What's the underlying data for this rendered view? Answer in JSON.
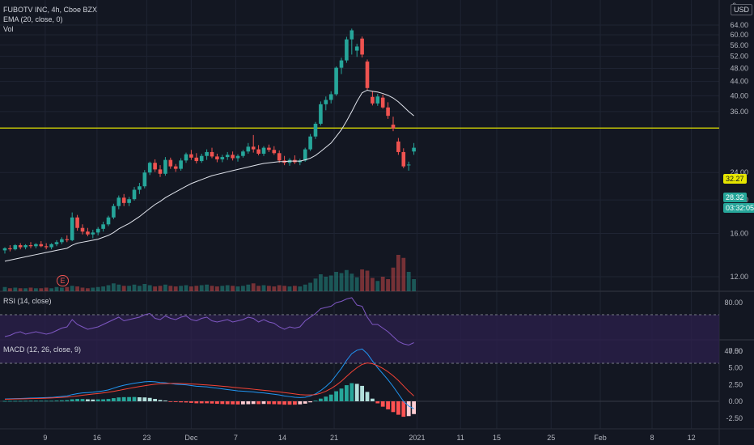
{
  "header": {
    "symbol_line": "FUBOTV INC, 4h, Cboe BZX",
    "ema_label": "EMA (20, close, 0)",
    "vol_label": "Vol",
    "currency": "USD",
    "axis_top_fragment": "6"
  },
  "panes": {
    "rsi_label": "RSI (14, close)",
    "macd_label": "MACD (12, 26, close, 9)"
  },
  "colors": {
    "background": "#131722",
    "up": "#26a69a",
    "down": "#ef5350",
    "ema": "#e0e3eb",
    "hline": "#e6e600",
    "rsi": "#7e57c2",
    "rsi_band": "#2a1f4a",
    "macd": "#2196f3",
    "signal": "#f44336"
  },
  "badges": {
    "hline_price": "32.27",
    "last_price": "28.32",
    "countdown": "03:32:05",
    "earnings_marker": "E"
  },
  "chart_data": {
    "type": "candlestick",
    "title": "FUBOTV INC, 4h, Cboe BZX",
    "price_axis": {
      "ticks": [
        "64.00",
        "60.00",
        "56.00",
        "52.00",
        "48.00",
        "44.00",
        "40.00",
        "36.00",
        "32.27",
        "28.32",
        "24.00",
        "20.00",
        "16.00",
        "12.00"
      ],
      "ylim": [
        10.5,
        66
      ],
      "scale": "log"
    },
    "rsi_axis": {
      "ticks": [
        "80.00",
        "40.00"
      ],
      "band": [
        30,
        70
      ]
    },
    "macd_axis": {
      "ticks": [
        "7.50",
        "5.00",
        "2.50",
        "0.00",
        "-2.50"
      ],
      "ylim": [
        -3.5,
        9
      ]
    },
    "x_ticks": [
      "9",
      "16",
      "23",
      "Dec",
      "7",
      "14",
      "21",
      "2021",
      "11",
      "15",
      "25",
      "Feb",
      "8",
      "12"
    ],
    "horizontal_line": 32.27,
    "candles": [
      [
        14.3,
        14.6,
        14.0,
        14.5
      ],
      [
        14.5,
        14.8,
        14.2,
        14.4
      ],
      [
        14.4,
        14.9,
        14.3,
        14.8
      ],
      [
        14.8,
        15.0,
        14.4,
        14.6
      ],
      [
        14.6,
        14.9,
        14.4,
        14.8
      ],
      [
        14.8,
        15.1,
        14.5,
        14.7
      ],
      [
        14.7,
        15.0,
        14.5,
        14.9
      ],
      [
        14.9,
        15.2,
        14.6,
        14.7
      ],
      [
        14.7,
        15.0,
        14.4,
        14.6
      ],
      [
        14.6,
        15.0,
        14.4,
        14.9
      ],
      [
        14.9,
        15.3,
        14.7,
        15.1
      ],
      [
        15.1,
        15.6,
        14.9,
        15.4
      ],
      [
        15.4,
        15.8,
        15.1,
        15.3
      ],
      [
        15.3,
        18.4,
        15.2,
        17.8
      ],
      [
        17.8,
        18.1,
        16.3,
        16.6
      ],
      [
        16.6,
        17.0,
        15.9,
        16.2
      ],
      [
        16.2,
        16.6,
        15.7,
        15.9
      ],
      [
        15.9,
        16.4,
        15.5,
        16.1
      ],
      [
        16.1,
        16.7,
        15.8,
        16.5
      ],
      [
        16.5,
        17.3,
        16.2,
        17.0
      ],
      [
        17.0,
        18.0,
        16.8,
        17.8
      ],
      [
        17.8,
        19.5,
        17.6,
        19.2
      ],
      [
        19.2,
        20.6,
        18.8,
        20.3
      ],
      [
        20.3,
        20.8,
        19.2,
        19.6
      ],
      [
        19.6,
        20.4,
        19.2,
        20.1
      ],
      [
        20.1,
        21.8,
        19.9,
        21.4
      ],
      [
        21.4,
        22.4,
        20.8,
        21.9
      ],
      [
        21.9,
        24.4,
        21.6,
        24.0
      ],
      [
        24.0,
        25.8,
        23.6,
        25.6
      ],
      [
        25.6,
        26.2,
        24.1,
        24.5
      ],
      [
        24.5,
        25.2,
        23.3,
        23.8
      ],
      [
        23.8,
        26.6,
        23.5,
        26.1
      ],
      [
        26.1,
        26.5,
        24.6,
        25.0
      ],
      [
        25.0,
        25.4,
        24.1,
        24.6
      ],
      [
        24.6,
        26.4,
        24.3,
        26.0
      ],
      [
        26.0,
        27.4,
        25.6,
        27.1
      ],
      [
        27.1,
        27.9,
        26.1,
        26.5
      ],
      [
        26.5,
        27.3,
        25.5,
        25.9
      ],
      [
        25.9,
        27.2,
        25.6,
        26.8
      ],
      [
        26.8,
        28.0,
        26.1,
        27.5
      ],
      [
        27.5,
        28.3,
        26.4,
        26.7
      ],
      [
        26.7,
        27.2,
        25.7,
        26.2
      ],
      [
        26.2,
        27.0,
        25.7,
        26.6
      ],
      [
        26.6,
        27.5,
        26.1,
        27.0
      ],
      [
        27.0,
        27.6,
        26.0,
        26.4
      ],
      [
        26.4,
        27.1,
        25.8,
        26.8
      ],
      [
        26.8,
        27.9,
        26.5,
        27.6
      ],
      [
        27.6,
        29.2,
        27.2,
        28.5
      ],
      [
        28.5,
        30.8,
        27.4,
        28.0
      ],
      [
        28.0,
        28.8,
        26.9,
        27.2
      ],
      [
        27.2,
        28.6,
        26.8,
        28.3
      ],
      [
        28.3,
        28.9,
        27.5,
        27.9
      ],
      [
        27.9,
        28.6,
        27.0,
        27.3
      ],
      [
        27.3,
        27.8,
        25.6,
        26.0
      ],
      [
        26.0,
        26.8,
        25.2,
        25.6
      ],
      [
        25.6,
        26.4,
        25.1,
        26.1
      ],
      [
        26.1,
        26.9,
        25.4,
        25.7
      ],
      [
        25.7,
        26.3,
        25.2,
        26.0
      ],
      [
        26.0,
        28.3,
        25.8,
        28.0
      ],
      [
        28.0,
        31.0,
        27.7,
        30.5
      ],
      [
        30.5,
        33.6,
        30.0,
        33.2
      ],
      [
        33.2,
        38.5,
        32.8,
        37.8
      ],
      [
        37.8,
        39.8,
        36.3,
        38.9
      ],
      [
        38.9,
        41.2,
        38.0,
        40.4
      ],
      [
        40.4,
        48.6,
        40.0,
        48.2
      ],
      [
        48.2,
        51.5,
        46.2,
        50.6
      ],
      [
        50.6,
        59.2,
        49.8,
        58.2
      ],
      [
        58.2,
        62.5,
        52.6,
        61.8
      ],
      [
        54.0,
        56.5,
        51.8,
        55.5
      ],
      [
        58.5,
        59.3,
        51.6,
        52.6
      ],
      [
        50.2,
        50.9,
        41.6,
        42.1
      ],
      [
        39.7,
        41.3,
        37.5,
        38.0
      ],
      [
        38.0,
        40.5,
        37.4,
        39.8
      ],
      [
        39.5,
        40.3,
        36.7,
        37.0
      ],
      [
        37.0,
        38.3,
        34.3,
        35.0
      ],
      [
        33.0,
        34.8,
        31.6,
        32.2
      ],
      [
        29.5,
        30.2,
        27.0,
        27.5
      ],
      [
        27.5,
        28.2,
        24.7,
        25.0
      ],
      [
        25.3,
        25.8,
        24.3,
        25.3
      ],
      [
        27.6,
        29.2,
        27.0,
        28.3
      ]
    ],
    "ema20": [
      13.3,
      13.4,
      13.5,
      13.6,
      13.7,
      13.8,
      13.9,
      14.0,
      14.1,
      14.2,
      14.3,
      14.4,
      14.5,
      14.8,
      15.0,
      15.1,
      15.2,
      15.3,
      15.4,
      15.6,
      15.8,
      16.1,
      16.5,
      16.8,
      17.1,
      17.5,
      17.9,
      18.4,
      18.9,
      19.4,
      19.8,
      20.3,
      20.7,
      21.1,
      21.5,
      21.9,
      22.3,
      22.6,
      22.9,
      23.2,
      23.5,
      23.7,
      23.9,
      24.1,
      24.3,
      24.5,
      24.7,
      24.9,
      25.1,
      25.3,
      25.5,
      25.6,
      25.7,
      25.8,
      25.8,
      25.9,
      25.9,
      25.9,
      26.1,
      26.4,
      26.9,
      27.6,
      28.4,
      29.2,
      30.5,
      31.9,
      33.8,
      36.0,
      38.5,
      40.8,
      41.5,
      41.2,
      41.0,
      40.6,
      40.1,
      39.4,
      38.4,
      37.2,
      36.0,
      35.0
    ],
    "volume": [
      7,
      5,
      6,
      5,
      5,
      6,
      5,
      5,
      6,
      5,
      7,
      6,
      7,
      9,
      8,
      6,
      5,
      6,
      7,
      8,
      10,
      13,
      11,
      9,
      9,
      11,
      9,
      12,
      10,
      8,
      9,
      11,
      9,
      8,
      9,
      10,
      8,
      9,
      10,
      11,
      9,
      8,
      9,
      10,
      9,
      8,
      9,
      11,
      13,
      9,
      10,
      9,
      8,
      10,
      9,
      8,
      9,
      8,
      11,
      14,
      21,
      28,
      24,
      26,
      32,
      30,
      35,
      29,
      23,
      36,
      34,
      22,
      17,
      24,
      20,
      39,
      60,
      55,
      32,
      20
    ],
    "rsi": [
      52,
      53,
      55,
      56,
      54,
      55,
      56,
      55,
      54,
      55,
      57,
      59,
      60,
      66,
      62,
      60,
      58,
      59,
      60,
      62,
      64,
      66,
      68,
      65,
      66,
      67,
      68,
      70,
      71,
      67,
      66,
      69,
      67,
      66,
      68,
      69,
      66,
      65,
      67,
      68,
      65,
      64,
      65,
      66,
      64,
      65,
      66,
      68,
      67,
      64,
      66,
      64,
      63,
      60,
      58,
      60,
      59,
      60,
      65,
      68,
      71,
      75,
      76,
      77,
      80,
      81,
      83,
      84,
      78,
      77,
      68,
      62,
      62,
      59,
      56,
      52,
      48,
      46,
      45,
      47
    ],
    "macd": [
      0.35,
      0.38,
      0.4,
      0.42,
      0.45,
      0.48,
      0.5,
      0.52,
      0.55,
      0.58,
      0.65,
      0.72,
      0.8,
      1.0,
      1.15,
      1.25,
      1.3,
      1.35,
      1.45,
      1.55,
      1.7,
      1.95,
      2.2,
      2.4,
      2.55,
      2.7,
      2.8,
      2.9,
      2.95,
      2.9,
      2.8,
      2.75,
      2.65,
      2.55,
      2.5,
      2.45,
      2.35,
      2.25,
      2.2,
      2.15,
      2.05,
      1.95,
      1.85,
      1.75,
      1.65,
      1.55,
      1.5,
      1.45,
      1.4,
      1.3,
      1.25,
      1.15,
      1.05,
      0.95,
      0.8,
      0.7,
      0.6,
      0.55,
      0.6,
      0.8,
      1.1,
      1.6,
      2.2,
      2.9,
      3.9,
      4.9,
      6.1,
      7.1,
      7.6,
      7.8,
      7.1,
      6.0,
      5.0,
      4.1,
      3.2,
      2.2,
      1.1,
      0.0,
      -0.7,
      -1.1
    ],
    "signal": [
      0.3,
      0.32,
      0.34,
      0.36,
      0.38,
      0.4,
      0.42,
      0.44,
      0.47,
      0.5,
      0.54,
      0.58,
      0.63,
      0.7,
      0.8,
      0.9,
      1.0,
      1.08,
      1.16,
      1.25,
      1.35,
      1.48,
      1.62,
      1.78,
      1.92,
      2.06,
      2.2,
      2.32,
      2.44,
      2.54,
      2.6,
      2.64,
      2.66,
      2.66,
      2.65,
      2.62,
      2.58,
      2.54,
      2.49,
      2.44,
      2.38,
      2.32,
      2.25,
      2.18,
      2.1,
      2.02,
      1.95,
      1.88,
      1.8,
      1.72,
      1.64,
      1.56,
      1.48,
      1.4,
      1.3,
      1.2,
      1.1,
      1.0,
      0.95,
      0.95,
      1.0,
      1.2,
      1.5,
      1.9,
      2.4,
      3.0,
      3.7,
      4.4,
      5.0,
      5.5,
      5.7,
      5.6,
      5.3,
      4.9,
      4.4,
      3.8,
      3.1,
      2.3,
      1.5,
      0.8
    ],
    "histogram": [
      0.05,
      0.06,
      0.06,
      0.06,
      0.07,
      0.08,
      0.08,
      0.08,
      0.08,
      0.08,
      0.11,
      0.14,
      0.17,
      0.3,
      0.35,
      0.35,
      0.3,
      0.27,
      0.29,
      0.3,
      0.35,
      0.47,
      0.58,
      0.62,
      0.63,
      0.64,
      0.6,
      0.58,
      0.51,
      0.36,
      0.2,
      0.11,
      -0.01,
      -0.11,
      -0.15,
      -0.17,
      -0.23,
      -0.29,
      -0.29,
      -0.29,
      -0.33,
      -0.37,
      -0.4,
      -0.43,
      -0.45,
      -0.47,
      -0.45,
      -0.43,
      -0.4,
      -0.42,
      -0.39,
      -0.41,
      -0.43,
      -0.45,
      -0.5,
      -0.5,
      -0.5,
      -0.45,
      -0.35,
      -0.15,
      0.1,
      0.4,
      0.7,
      1.0,
      1.5,
      1.9,
      2.4,
      2.7,
      2.6,
      2.3,
      1.4,
      0.4,
      -0.3,
      -0.8,
      -1.2,
      -1.6,
      -2.0,
      -2.3,
      -2.2,
      -1.9
    ]
  }
}
